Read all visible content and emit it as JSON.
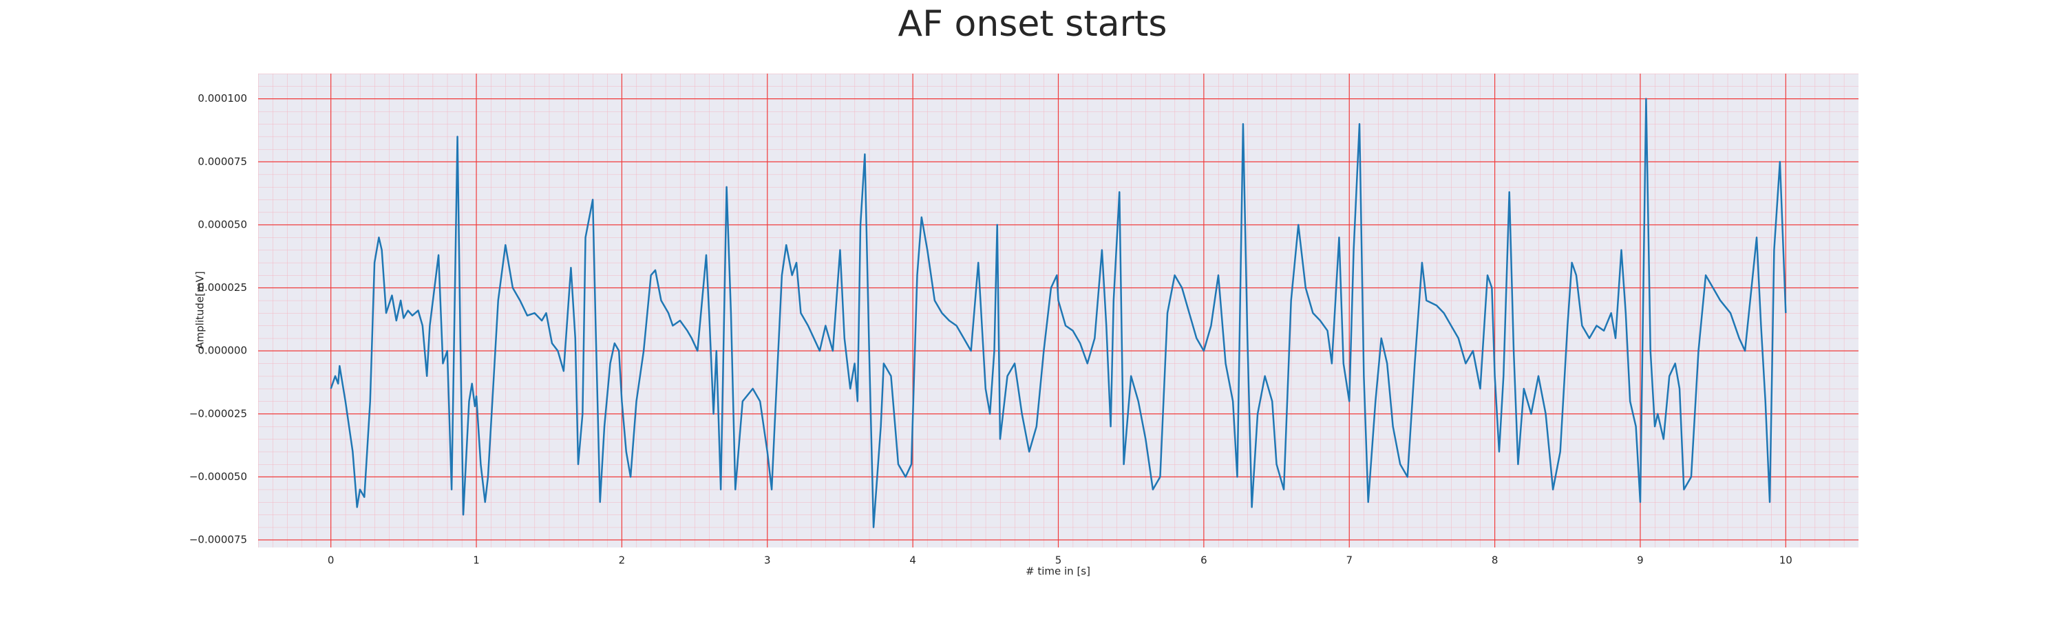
{
  "chart_data": {
    "type": "line",
    "title": "AF onset starts",
    "x_label": "# time in [s]",
    "y_label": "Amplitude[mV]",
    "x": [
      0,
      0.03,
      0.05,
      0.06,
      0.1,
      0.15,
      0.18,
      0.2,
      0.23,
      0.27,
      0.3,
      0.33,
      0.35,
      0.38,
      0.42,
      0.45,
      0.48,
      0.5,
      0.53,
      0.56,
      0.6,
      0.63,
      0.66,
      0.68,
      0.74,
      0.77,
      0.8,
      0.83,
      0.87,
      0.89,
      0.91,
      0.95,
      0.97,
      0.99,
      1.0,
      1.03,
      1.06,
      1.08,
      1.15,
      1.2,
      1.25,
      1.3,
      1.35,
      1.4,
      1.45,
      1.48,
      1.52,
      1.56,
      1.6,
      1.65,
      1.68,
      1.7,
      1.73,
      1.75,
      1.8,
      1.82,
      1.85,
      1.88,
      1.92,
      1.95,
      1.98,
      2.0,
      2.03,
      2.06,
      2.1,
      2.15,
      2.2,
      2.23,
      2.27,
      2.32,
      2.35,
      2.4,
      2.45,
      2.48,
      2.52,
      2.58,
      2.6,
      2.63,
      2.65,
      2.68,
      2.72,
      2.75,
      2.78,
      2.83,
      2.9,
      2.95,
      3.0,
      3.03,
      3.05,
      3.1,
      3.13,
      3.17,
      3.2,
      3.23,
      3.28,
      3.32,
      3.36,
      3.4,
      3.45,
      3.5,
      3.53,
      3.57,
      3.6,
      3.62,
      3.64,
      3.67,
      3.7,
      3.73,
      3.78,
      3.8,
      3.85,
      3.9,
      3.95,
      3.99,
      4.03,
      4.06,
      4.1,
      4.15,
      4.2,
      4.25,
      4.3,
      4.35,
      4.4,
      4.45,
      4.48,
      4.5,
      4.53,
      4.56,
      4.58,
      4.6,
      4.65,
      4.7,
      4.75,
      4.8,
      4.85,
      4.9,
      4.95,
      4.99,
      5.0,
      5.05,
      5.1,
      5.15,
      5.2,
      5.25,
      5.3,
      5.33,
      5.36,
      5.38,
      5.42,
      5.45,
      5.5,
      5.55,
      5.6,
      5.65,
      5.7,
      5.75,
      5.8,
      5.85,
      5.9,
      5.95,
      6.0,
      6.05,
      6.1,
      6.15,
      6.2,
      6.23,
      6.27,
      6.3,
      6.33,
      6.37,
      6.42,
      6.47,
      6.5,
      6.55,
      6.6,
      6.65,
      6.7,
      6.75,
      6.8,
      6.85,
      6.88,
      6.93,
      6.96,
      7.0,
      7.03,
      7.07,
      7.1,
      7.13,
      7.18,
      7.22,
      7.26,
      7.3,
      7.35,
      7.4,
      7.45,
      7.5,
      7.53,
      7.6,
      7.65,
      7.7,
      7.75,
      7.8,
      7.85,
      7.9,
      7.95,
      7.98,
      8.0,
      8.03,
      8.06,
      8.1,
      8.13,
      8.16,
      8.2,
      8.25,
      8.3,
      8.35,
      8.4,
      8.45,
      8.5,
      8.53,
      8.56,
      8.6,
      8.65,
      8.7,
      8.75,
      8.8,
      8.83,
      8.87,
      8.9,
      8.93,
      8.97,
      9.0,
      9.04,
      9.07,
      9.1,
      9.12,
      9.16,
      9.2,
      9.24,
      9.27,
      9.3,
      9.35,
      9.4,
      9.45,
      9.5,
      9.55,
      9.62,
      9.68,
      9.72,
      9.8,
      9.83,
      9.86,
      9.89,
      9.92,
      9.96,
      10.0
    ],
    "series": [
      {
        "color": "#1f77b4",
        "values": [
          -1.5e-05,
          -1e-05,
          -1.3e-05,
          -6e-06,
          -2e-05,
          -4e-05,
          -6.2e-05,
          -5.5e-05,
          -5.8e-05,
          -2e-05,
          3.5e-05,
          4.5e-05,
          4e-05,
          1.5e-05,
          2.2e-05,
          1.2e-05,
          2e-05,
          1.3e-05,
          1.6e-05,
          1.4e-05,
          1.6e-05,
          1e-05,
          -1e-05,
          1e-05,
          3.8e-05,
          -5e-06,
          0,
          -5.5e-05,
          8.5e-05,
          5e-06,
          -6.5e-05,
          -2e-05,
          -1.3e-05,
          -2.2e-05,
          -1.8e-05,
          -4.5e-05,
          -6e-05,
          -5e-05,
          2e-05,
          4.2e-05,
          2.5e-05,
          2e-05,
          1.4e-05,
          1.5e-05,
          1.2e-05,
          1.5e-05,
          3e-06,
          0,
          -8e-06,
          3.3e-05,
          5e-06,
          -4.5e-05,
          -2.5e-05,
          4.5e-05,
          6e-05,
          1e-05,
          -6e-05,
          -3e-05,
          -5e-06,
          3e-06,
          0,
          -2e-05,
          -4e-05,
          -5e-05,
          -2e-05,
          0,
          3e-05,
          3.2e-05,
          2e-05,
          1.5e-05,
          1e-05,
          1.2e-05,
          8e-06,
          5e-06,
          0,
          3.8e-05,
          1.5e-05,
          -2.5e-05,
          0,
          -5.5e-05,
          6.5e-05,
          1.5e-05,
          -5.5e-05,
          -2e-05,
          -1.5e-05,
          -2e-05,
          -4e-05,
          -5.5e-05,
          -3e-05,
          3e-05,
          4.2e-05,
          3e-05,
          3.5e-05,
          1.5e-05,
          1e-05,
          5e-06,
          0,
          1e-05,
          0,
          4e-05,
          5e-06,
          -1.5e-05,
          -5e-06,
          -2e-05,
          5e-05,
          7.8e-05,
          0,
          -7e-05,
          -3e-05,
          -5e-06,
          -1e-05,
          -4.5e-05,
          -5e-05,
          -4.5e-05,
          3e-05,
          5.3e-05,
          4e-05,
          2e-05,
          1.5e-05,
          1.2e-05,
          1e-05,
          5e-06,
          0,
          3.5e-05,
          5e-06,
          -1.5e-05,
          -2.5e-05,
          0,
          5e-05,
          -3.5e-05,
          -1e-05,
          -5e-06,
          -2.5e-05,
          -4e-05,
          -3e-05,
          0,
          2.5e-05,
          3e-05,
          2e-05,
          1e-05,
          8e-06,
          3e-06,
          -5e-06,
          5e-06,
          4e-05,
          1e-05,
          -3e-05,
          2e-05,
          6.3e-05,
          -4.5e-05,
          -1e-05,
          -2e-05,
          -3.5e-05,
          -5.5e-05,
          -5e-05,
          1.5e-05,
          3e-05,
          2.5e-05,
          1.5e-05,
          5e-06,
          0,
          1e-05,
          3e-05,
          -5e-06,
          -2e-05,
          -5e-05,
          9e-05,
          5e-06,
          -6.2e-05,
          -2.5e-05,
          -1e-05,
          -2e-05,
          -4.5e-05,
          -5.5e-05,
          2e-05,
          5e-05,
          2.5e-05,
          1.5e-05,
          1.2e-05,
          8e-06,
          -5e-06,
          4.5e-05,
          -5e-06,
          -2e-05,
          4e-05,
          9e-05,
          -1e-05,
          -6e-05,
          -2e-05,
          5e-06,
          -5e-06,
          -3e-05,
          -4.5e-05,
          -5e-05,
          -5e-06,
          3.5e-05,
          2e-05,
          1.8e-05,
          1.5e-05,
          1e-05,
          5e-06,
          -5e-06,
          0,
          -1.5e-05,
          3e-05,
          2.5e-05,
          -1e-05,
          -4e-05,
          -1e-05,
          6.3e-05,
          0,
          -4.5e-05,
          -1.5e-05,
          -2.5e-05,
          -1e-05,
          -2.5e-05,
          -5.5e-05,
          -4e-05,
          1e-05,
          3.5e-05,
          3e-05,
          1e-05,
          5e-06,
          1e-05,
          8e-06,
          1.5e-05,
          5e-06,
          4e-05,
          1.5e-05,
          -2e-05,
          -3e-05,
          -6e-05,
          0.0001,
          0,
          -3e-05,
          -2.5e-05,
          -3.5e-05,
          -1e-05,
          -5e-06,
          -1.5e-05,
          -5.5e-05,
          -5e-05,
          0,
          3e-05,
          2.5e-05,
          2e-05,
          1.5e-05,
          5e-06,
          0,
          4.5e-05,
          1e-05,
          -2e-05,
          -6e-05,
          4e-05,
          7.5e-05,
          1.5e-05
        ]
      }
    ],
    "xlim": [
      -0.5,
      10.5
    ],
    "xticks": [
      0,
      1,
      2,
      3,
      4,
      5,
      6,
      7,
      8,
      9,
      10
    ],
    "ylim": [
      -7.8e-05,
      0.00011
    ],
    "yticks": [
      {
        "value": 0.0001,
        "label": "0.000100"
      },
      {
        "value": 7.5e-05,
        "label": "0.000075"
      },
      {
        "value": 5e-05,
        "label": "0.000050"
      },
      {
        "value": 2.5e-05,
        "label": "0.000025"
      },
      {
        "value": 0,
        "label": "0.000000"
      },
      {
        "value": -2.5e-05,
        "label": "−0.000025"
      },
      {
        "value": -5e-05,
        "label": "−0.000050"
      },
      {
        "value": -7.5e-05,
        "label": "−0.000075"
      }
    ],
    "grid": true,
    "minor_grid": true
  }
}
